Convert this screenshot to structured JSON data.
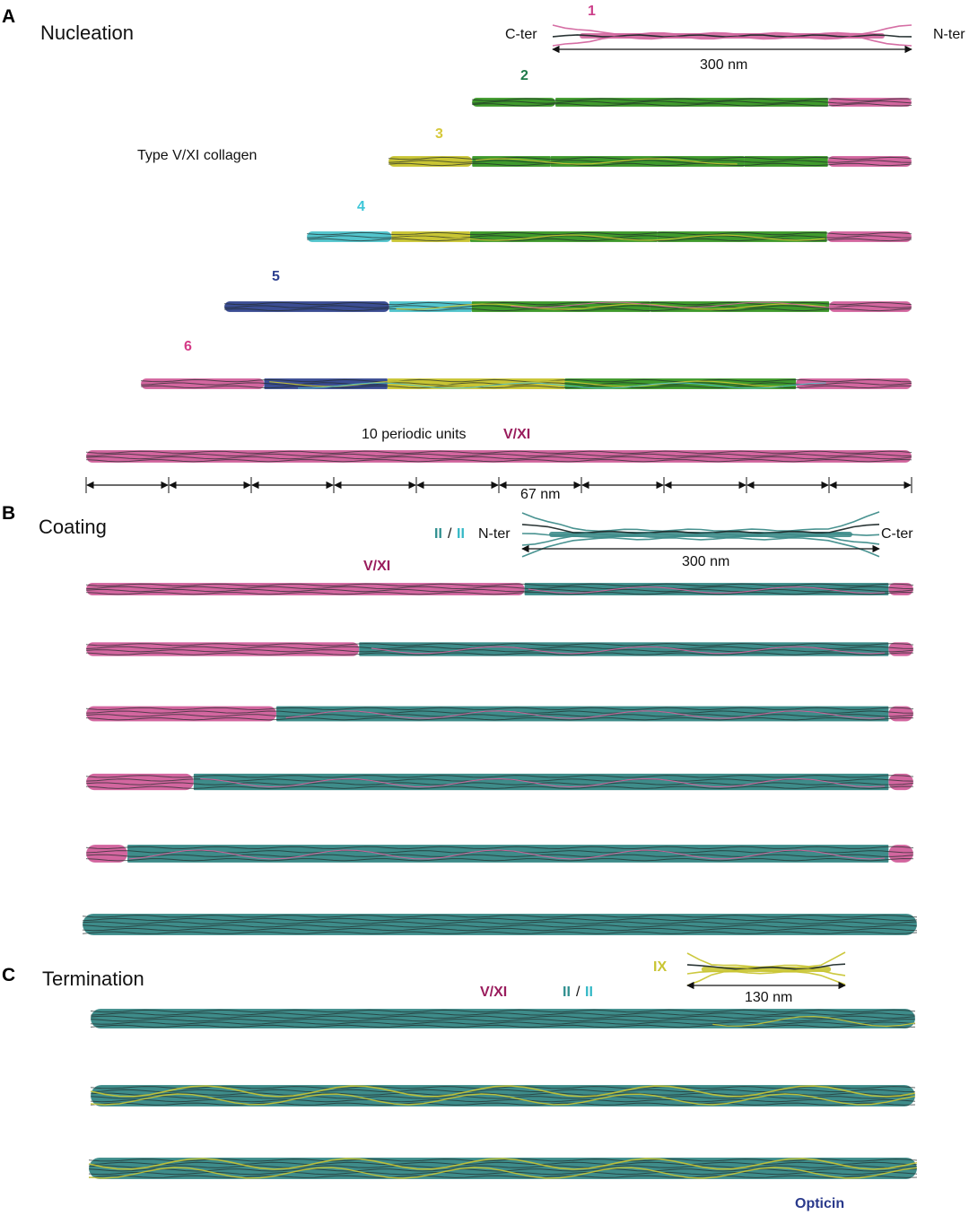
{
  "panels": {
    "A": {
      "letter": "A",
      "title": "Nucleation"
    },
    "B": {
      "letter": "B",
      "title": "Coating"
    },
    "C": {
      "letter": "C",
      "title": "Termination"
    }
  },
  "labels": {
    "c_ter": "C-ter",
    "n_ter": "N-ter",
    "len_300": "300 nm",
    "type_vxi": "Type V/XI collagen",
    "periodic_units": "10 periodic units",
    "vxi": "V/XI",
    "nm67": "67 nm",
    "ii": "II",
    "slash": "/",
    "ix": "IX",
    "len_130": "130 nm",
    "opticin": "Opticin"
  },
  "step_numbers": [
    "1",
    "2",
    "3",
    "4",
    "5",
    "6"
  ],
  "colors": {
    "pink": "#d3669f",
    "green": "#3f9a2c",
    "yellow": "#c9c534",
    "cyan": "#52c4cc",
    "navy": "#3b4d93",
    "teal": "#3e8c8a",
    "magenta_text": "#9a1d5d",
    "cyan_text": "#34b8c6",
    "teal_text": "#2f8f8f",
    "navy_text": "#2a3a8c",
    "num1": "#cc3f8a",
    "num2": "#1f7a4a",
    "num3": "#d6c83a",
    "num4": "#3cc6d8",
    "num5": "#2c3f8f",
    "num6": "#d43a86"
  }
}
